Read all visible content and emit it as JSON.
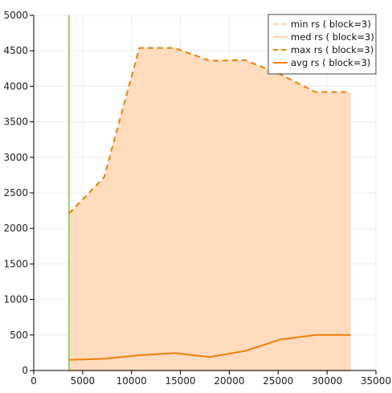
{
  "chart_data": {
    "type": "area",
    "title": "",
    "xlabel": "",
    "ylabel": "",
    "xlim": [
      0,
      35000
    ],
    "ylim": [
      0,
      5000
    ],
    "xticks": [
      0,
      5000,
      10000,
      15000,
      20000,
      25000,
      30000,
      35000
    ],
    "yticks": [
      0,
      500,
      1000,
      1500,
      2000,
      2500,
      3000,
      3500,
      4000,
      4500,
      5000
    ],
    "grid": true,
    "legend_position": "top-right",
    "vertical_marker_x": 3600,
    "x": [
      3600,
      7200,
      10800,
      14400,
      18000,
      21600,
      25200,
      28800,
      32400
    ],
    "series": [
      {
        "name": "min rs ( block=3)",
        "style": "dashed-light",
        "color": "#ffd0a8",
        "values": [
          0,
          0,
          0,
          0,
          0,
          0,
          0,
          0,
          0
        ]
      },
      {
        "name": "med rs ( block=3)",
        "style": "solid-light",
        "color": "#ffd0a8",
        "values": [
          0,
          0,
          0,
          0,
          0,
          0,
          0,
          0,
          0
        ]
      },
      {
        "name": "max rs ( block=3)",
        "style": "dashed",
        "color": "#f07f09",
        "values": [
          2210,
          2720,
          4540,
          4540,
          4360,
          4370,
          4170,
          3920,
          3920
        ]
      },
      {
        "name": "avg rs ( block=3)",
        "style": "solid",
        "color": "#f07f09",
        "values": [
          150,
          165,
          215,
          245,
          190,
          275,
          435,
          500,
          500
        ]
      }
    ],
    "fill_color": "#ffdcbd",
    "marker_color": "#8fd16a"
  }
}
